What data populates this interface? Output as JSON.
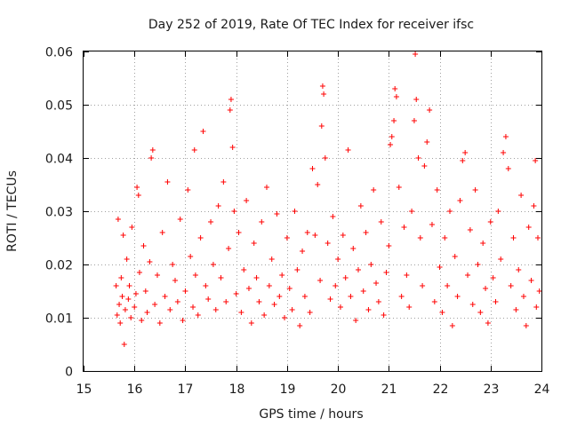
{
  "chart_data": {
    "type": "scatter",
    "title": "Day 252 of 2019, Rate Of TEC Index for receiver ifsc",
    "xlabel": "GPS time / hours",
    "ylabel": "ROTI / TECUs",
    "xlim": [
      15,
      24
    ],
    "ylim": [
      0,
      0.06
    ],
    "grid": true,
    "marker": "+",
    "marker_color": "#ff0000",
    "x_ticks": [
      15,
      16,
      17,
      18,
      19,
      20,
      21,
      22,
      23,
      24
    ],
    "x_tick_labels": [
      "15",
      "16",
      "17",
      "18",
      "19",
      "20",
      "21",
      "22",
      "23",
      "24"
    ],
    "y_ticks": [
      0,
      0.01,
      0.02,
      0.03,
      0.04,
      0.05,
      0.06
    ],
    "y_tick_labels": [
      "0",
      "0.01",
      "0.02",
      "0.03",
      "0.04",
      "0.05",
      "0.06"
    ],
    "series": [
      {
        "name": "ROTI",
        "points": [
          [
            15.64,
            0.016
          ],
          [
            15.66,
            0.0105
          ],
          [
            15.68,
            0.0285
          ],
          [
            15.7,
            0.0125
          ],
          [
            15.72,
            0.009
          ],
          [
            15.74,
            0.0175
          ],
          [
            15.76,
            0.014
          ],
          [
            15.78,
            0.0255
          ],
          [
            15.8,
            0.005
          ],
          [
            15.82,
            0.0115
          ],
          [
            15.85,
            0.021
          ],
          [
            15.88,
            0.0135
          ],
          [
            15.9,
            0.016
          ],
          [
            15.93,
            0.01
          ],
          [
            15.95,
            0.027
          ],
          [
            16.0,
            0.012
          ],
          [
            16.03,
            0.0145
          ],
          [
            16.05,
            0.0345
          ],
          [
            16.08,
            0.033
          ],
          [
            16.1,
            0.0185
          ],
          [
            16.14,
            0.0095
          ],
          [
            16.18,
            0.0235
          ],
          [
            16.22,
            0.015
          ],
          [
            16.25,
            0.011
          ],
          [
            16.3,
            0.0205
          ],
          [
            16.33,
            0.04
          ],
          [
            16.36,
            0.0415
          ],
          [
            16.4,
            0.0125
          ],
          [
            16.45,
            0.018
          ],
          [
            16.5,
            0.009
          ],
          [
            16.55,
            0.026
          ],
          [
            16.6,
            0.014
          ],
          [
            16.65,
            0.0355
          ],
          [
            16.7,
            0.0115
          ],
          [
            16.75,
            0.02
          ],
          [
            16.8,
            0.017
          ],
          [
            16.85,
            0.013
          ],
          [
            16.9,
            0.0285
          ],
          [
            16.95,
            0.0095
          ],
          [
            17.0,
            0.015
          ],
          [
            17.05,
            0.034
          ],
          [
            17.1,
            0.0215
          ],
          [
            17.15,
            0.012
          ],
          [
            17.18,
            0.0415
          ],
          [
            17.2,
            0.018
          ],
          [
            17.25,
            0.0105
          ],
          [
            17.3,
            0.025
          ],
          [
            17.35,
            0.045
          ],
          [
            17.4,
            0.016
          ],
          [
            17.45,
            0.0135
          ],
          [
            17.5,
            0.028
          ],
          [
            17.55,
            0.02
          ],
          [
            17.6,
            0.0115
          ],
          [
            17.65,
            0.031
          ],
          [
            17.7,
            0.0175
          ],
          [
            17.75,
            0.0355
          ],
          [
            17.8,
            0.013
          ],
          [
            17.85,
            0.023
          ],
          [
            17.88,
            0.049
          ],
          [
            17.9,
            0.051
          ],
          [
            17.93,
            0.042
          ],
          [
            17.96,
            0.03
          ],
          [
            18.0,
            0.0145
          ],
          [
            18.05,
            0.026
          ],
          [
            18.1,
            0.011
          ],
          [
            18.15,
            0.019
          ],
          [
            18.2,
            0.032
          ],
          [
            18.25,
            0.0155
          ],
          [
            18.3,
            0.009
          ],
          [
            18.35,
            0.024
          ],
          [
            18.4,
            0.0175
          ],
          [
            18.45,
            0.013
          ],
          [
            18.5,
            0.028
          ],
          [
            18.55,
            0.0105
          ],
          [
            18.6,
            0.0345
          ],
          [
            18.65,
            0.016
          ],
          [
            18.7,
            0.021
          ],
          [
            18.75,
            0.0125
          ],
          [
            18.8,
            0.0295
          ],
          [
            18.85,
            0.014
          ],
          [
            18.9,
            0.018
          ],
          [
            18.95,
            0.01
          ],
          [
            19.0,
            0.025
          ],
          [
            19.05,
            0.0155
          ],
          [
            19.1,
            0.0115
          ],
          [
            19.15,
            0.03
          ],
          [
            19.2,
            0.019
          ],
          [
            19.25,
            0.0085
          ],
          [
            19.3,
            0.0225
          ],
          [
            19.35,
            0.014
          ],
          [
            19.4,
            0.026
          ],
          [
            19.45,
            0.011
          ],
          [
            19.5,
            0.038
          ],
          [
            19.55,
            0.0255
          ],
          [
            19.6,
            0.035
          ],
          [
            19.65,
            0.017
          ],
          [
            19.68,
            0.046
          ],
          [
            19.7,
            0.0535
          ],
          [
            19.72,
            0.052
          ],
          [
            19.75,
            0.04
          ],
          [
            19.8,
            0.024
          ],
          [
            19.85,
            0.0135
          ],
          [
            19.9,
            0.029
          ],
          [
            19.95,
            0.016
          ],
          [
            20.0,
            0.021
          ],
          [
            20.05,
            0.012
          ],
          [
            20.1,
            0.0255
          ],
          [
            20.15,
            0.0175
          ],
          [
            20.2,
            0.0415
          ],
          [
            20.25,
            0.014
          ],
          [
            20.3,
            0.023
          ],
          [
            20.35,
            0.0095
          ],
          [
            20.4,
            0.019
          ],
          [
            20.45,
            0.031
          ],
          [
            20.5,
            0.015
          ],
          [
            20.55,
            0.026
          ],
          [
            20.6,
            0.0115
          ],
          [
            20.65,
            0.02
          ],
          [
            20.7,
            0.034
          ],
          [
            20.75,
            0.0165
          ],
          [
            20.8,
            0.013
          ],
          [
            20.85,
            0.028
          ],
          [
            20.9,
            0.0105
          ],
          [
            20.95,
            0.0185
          ],
          [
            21.0,
            0.0235
          ],
          [
            21.03,
            0.0425
          ],
          [
            21.06,
            0.044
          ],
          [
            21.1,
            0.047
          ],
          [
            21.12,
            0.053
          ],
          [
            21.15,
            0.0515
          ],
          [
            21.2,
            0.0345
          ],
          [
            21.25,
            0.014
          ],
          [
            21.3,
            0.027
          ],
          [
            21.35,
            0.018
          ],
          [
            21.4,
            0.012
          ],
          [
            21.45,
            0.03
          ],
          [
            21.5,
            0.047
          ],
          [
            21.52,
            0.0595
          ],
          [
            21.54,
            0.051
          ],
          [
            21.58,
            0.04
          ],
          [
            21.62,
            0.025
          ],
          [
            21.66,
            0.016
          ],
          [
            21.7,
            0.0385
          ],
          [
            21.75,
            0.043
          ],
          [
            21.8,
            0.049
          ],
          [
            21.85,
            0.0275
          ],
          [
            21.9,
            0.013
          ],
          [
            21.95,
            0.034
          ],
          [
            22.0,
            0.0195
          ],
          [
            22.05,
            0.011
          ],
          [
            22.1,
            0.025
          ],
          [
            22.15,
            0.016
          ],
          [
            22.2,
            0.03
          ],
          [
            22.25,
            0.0085
          ],
          [
            22.3,
            0.0215
          ],
          [
            22.35,
            0.014
          ],
          [
            22.4,
            0.032
          ],
          [
            22.45,
            0.0395
          ],
          [
            22.5,
            0.041
          ],
          [
            22.55,
            0.018
          ],
          [
            22.6,
            0.0265
          ],
          [
            22.65,
            0.0125
          ],
          [
            22.7,
            0.034
          ],
          [
            22.75,
            0.02
          ],
          [
            22.8,
            0.011
          ],
          [
            22.85,
            0.024
          ],
          [
            22.9,
            0.0155
          ],
          [
            22.95,
            0.009
          ],
          [
            23.0,
            0.028
          ],
          [
            23.05,
            0.0175
          ],
          [
            23.1,
            0.013
          ],
          [
            23.15,
            0.03
          ],
          [
            23.2,
            0.021
          ],
          [
            23.25,
            0.041
          ],
          [
            23.3,
            0.044
          ],
          [
            23.35,
            0.038
          ],
          [
            23.4,
            0.016
          ],
          [
            23.45,
            0.025
          ],
          [
            23.5,
            0.0115
          ],
          [
            23.55,
            0.019
          ],
          [
            23.6,
            0.033
          ],
          [
            23.65,
            0.014
          ],
          [
            23.7,
            0.0085
          ],
          [
            23.75,
            0.027
          ],
          [
            23.8,
            0.017
          ],
          [
            23.85,
            0.031
          ],
          [
            23.88,
            0.0395
          ],
          [
            23.9,
            0.012
          ],
          [
            23.93,
            0.025
          ],
          [
            23.96,
            0.015
          ]
        ]
      }
    ]
  }
}
